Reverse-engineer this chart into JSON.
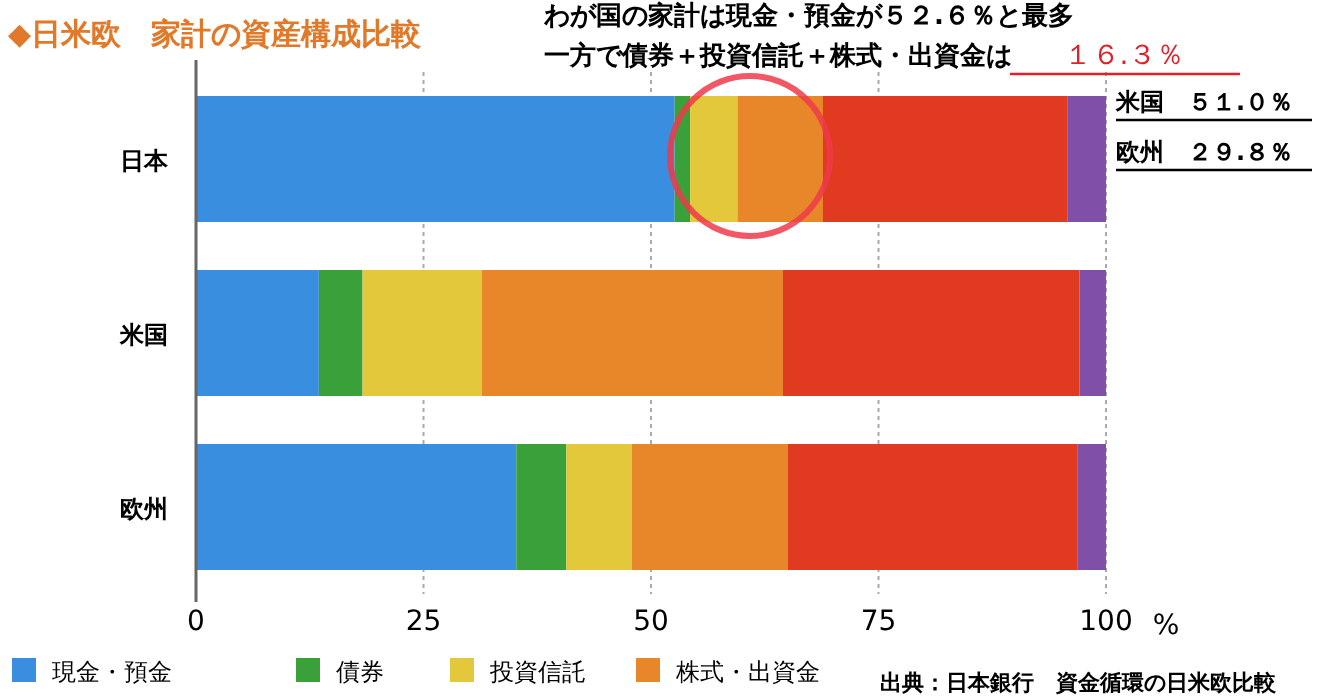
{
  "chart_data": {
    "type": "bar",
    "orientation": "horizontal",
    "stacked": true,
    "title": "◆日米欧　家計の資産構成比較",
    "xlabel": "%",
    "categories": [
      "日本",
      "米国",
      "欧州"
    ],
    "series": [
      {
        "name": "現金・預金",
        "color": "#3a8ee0",
        "values": [
          52.6,
          13.5,
          35.2
        ]
      },
      {
        "name": "債券",
        "color": "#3aa03a",
        "values": [
          1.7,
          4.8,
          5.5
        ]
      },
      {
        "name": "投資信託",
        "color": "#e2c83a",
        "values": [
          5.2,
          13.1,
          7.2
        ]
      },
      {
        "name": "株式・出資金",
        "color": "#e8862a",
        "values": [
          9.4,
          33.1,
          17.1
        ]
      },
      {
        "color": "#e03a20",
        "values": [
          26.9,
          32.6,
          31.9
        ]
      },
      {
        "color": "#8050a8",
        "values": [
          4.2,
          2.9,
          3.1
        ]
      }
    ],
    "xlim": [
      0,
      100
    ],
    "xticks": [
      0,
      25,
      50,
      75,
      100
    ],
    "grid": "x",
    "legend": "bottom",
    "annotations": [
      "わが国の家計は現金・預金が５２.６％と最多",
      "一方で債券＋投資信託＋株式・出資金は",
      "１６.３％",
      "米国　５１.０％",
      "欧州　２９.８％",
      "出典：日本銀行　資金循環の日米欧比較"
    ]
  }
}
